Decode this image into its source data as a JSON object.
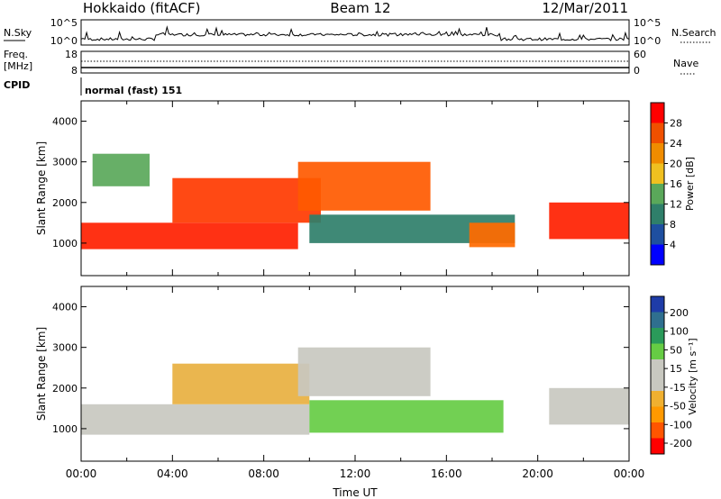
{
  "header": {
    "station": "Hokkaido (fitACF)",
    "beam": "Beam 12",
    "date": "12/Mar/2011"
  },
  "panels": {
    "nsky": {
      "label": "N.Sky",
      "left_ticks": [
        "10^5",
        "10^0"
      ],
      "right_ticks": [
        "10^5",
        "10^0"
      ],
      "right_label": "N.Search"
    },
    "freq": {
      "label_line1": "Freq.",
      "label_line2": "[MHz]",
      "left_ticks": [
        "18",
        "8"
      ],
      "right_ticks": [
        "60",
        "0"
      ],
      "right_label": "Nave"
    },
    "cpid": {
      "label": "CPID",
      "text": "normal (fast) 151"
    }
  },
  "colors": {
    "power_scale": [
      "#0000ff",
      "#1e4fa0",
      "#2f7f6a",
      "#5aa85a",
      "#f0c020",
      "#f08c00",
      "#f05000",
      "#ff0000"
    ],
    "velocity_scale": [
      "#ff0000",
      "#ff5500",
      "#ff9900",
      "#f0b030",
      "#c8c8c0",
      "#c8c8c0",
      "#66cc44",
      "#2a9a5a",
      "#2f6f8f",
      "#1e3ca8"
    ]
  },
  "chart_data": [
    {
      "type": "heatmap",
      "name": "power",
      "ylabel": "Slant Range [km]",
      "yticks": [
        "1000",
        "2000",
        "3000",
        "4000"
      ],
      "ylim": [
        200,
        4500
      ],
      "colorbar_label": "Power [dB]",
      "colorbar_ticks": [
        "4",
        "8",
        "12",
        "16",
        "20",
        "24",
        "28"
      ],
      "colorbar_range": [
        0,
        32
      ],
      "x_hours": [
        0,
        2,
        4,
        6,
        8,
        10,
        12,
        14,
        16,
        18,
        20,
        22,
        24
      ],
      "regions": [
        {
          "t0": 0.0,
          "t1": 9.5,
          "r0": 850,
          "r1": 1500,
          "color": "#ff2000"
        },
        {
          "t0": 4.0,
          "t1": 10.5,
          "r0": 1500,
          "r1": 2600,
          "color": "#ff3a00"
        },
        {
          "t0": 9.5,
          "t1": 15.3,
          "r0": 1800,
          "r1": 3000,
          "color": "#ff5a00"
        },
        {
          "t0": 10.0,
          "t1": 19.0,
          "r0": 1000,
          "r1": 1700,
          "color": "#2f7f6a"
        },
        {
          "t0": 17.0,
          "t1": 19.0,
          "r0": 900,
          "r1": 1500,
          "color": "#ff6a00"
        },
        {
          "t0": 20.5,
          "t1": 24.0,
          "r0": 1100,
          "r1": 2000,
          "color": "#ff2000"
        },
        {
          "t0": 0.5,
          "t1": 3.0,
          "r0": 2400,
          "r1": 3200,
          "color": "#5aa85a"
        }
      ]
    },
    {
      "type": "heatmap",
      "name": "velocity",
      "ylabel": "Slant Range [km]",
      "yticks": [
        "1000",
        "2000",
        "3000",
        "4000"
      ],
      "ylim": [
        200,
        4500
      ],
      "colorbar_label": "Velocity [m s⁻¹]",
      "colorbar_ticks": [
        "200",
        "100",
        "50",
        "15",
        "-15",
        "-50",
        "-100",
        "-200"
      ],
      "colorbar_range": [
        -250,
        250
      ],
      "xlabel": "Time UT",
      "xticks": [
        "00:00",
        "04:00",
        "08:00",
        "12:00",
        "16:00",
        "20:00",
        "00:00"
      ],
      "x_hours": [
        0,
        2,
        4,
        6,
        8,
        10,
        12,
        14,
        16,
        18,
        20,
        22,
        24
      ],
      "regions": [
        {
          "t0": 0.0,
          "t1": 10.0,
          "r0": 850,
          "r1": 1600,
          "color": "#c8c8c0"
        },
        {
          "t0": 4.0,
          "t1": 10.0,
          "r0": 1600,
          "r1": 2600,
          "color": "#e8b040"
        },
        {
          "t0": 9.5,
          "t1": 15.3,
          "r0": 1800,
          "r1": 3000,
          "color": "#c8c8c0"
        },
        {
          "t0": 10.0,
          "t1": 18.5,
          "r0": 900,
          "r1": 1700,
          "color": "#66cc44"
        },
        {
          "t0": 20.5,
          "t1": 24.0,
          "r0": 1100,
          "r1": 2000,
          "color": "#c8c8c0"
        }
      ]
    }
  ]
}
